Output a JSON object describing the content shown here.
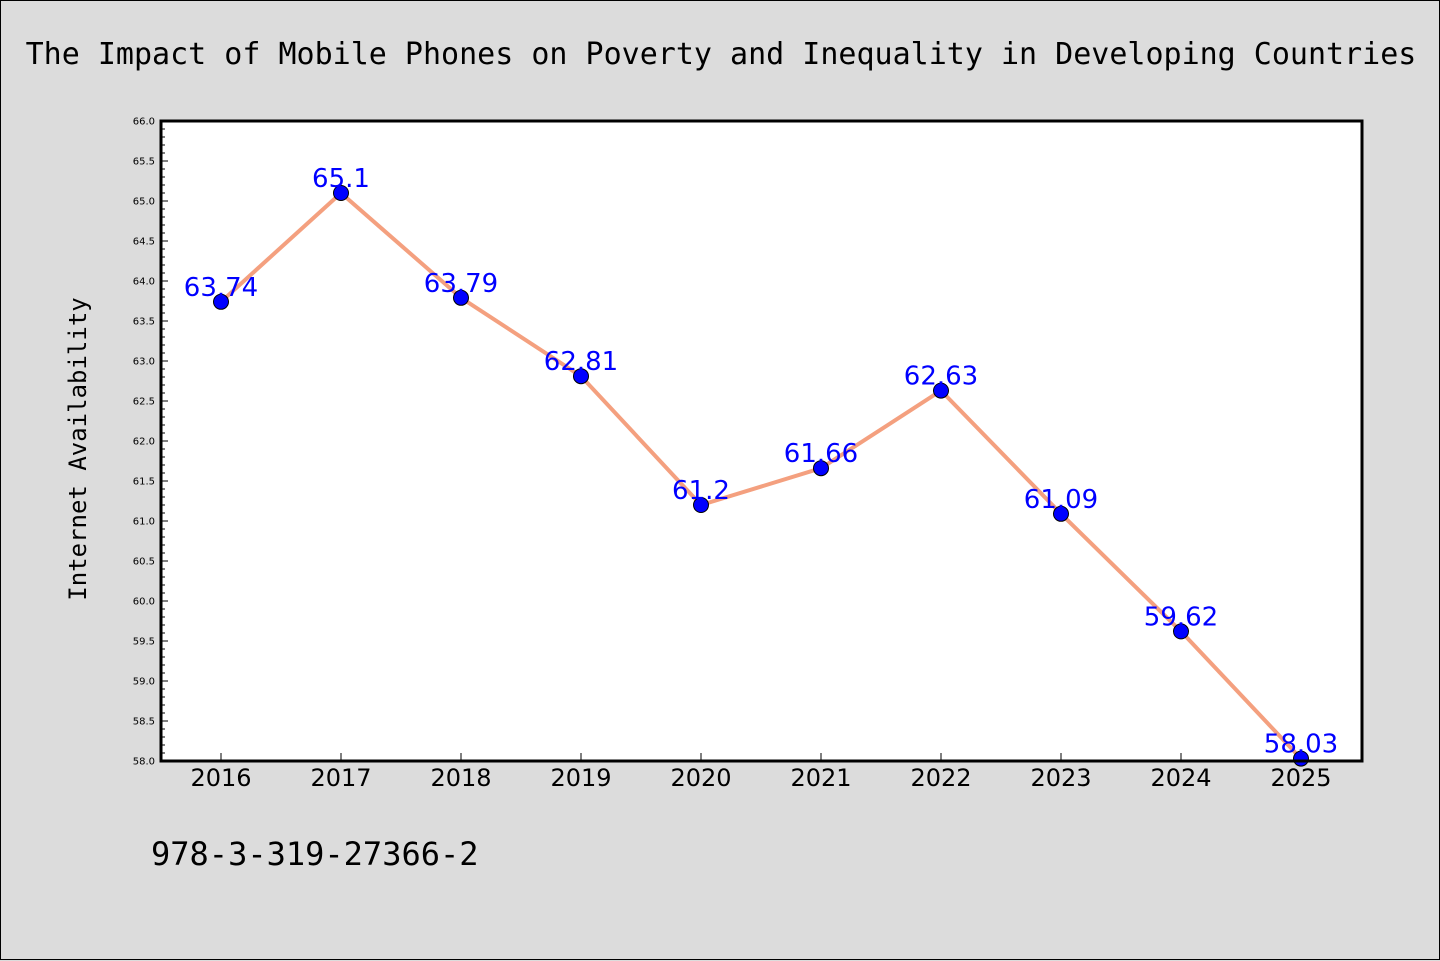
{
  "footer": {
    "isbn": "978-3-319-27366-2"
  },
  "colors": {
    "line": "#f4a07f",
    "marker": "#0000ff",
    "label": "#0000ff",
    "plot_bg": "#ffffff",
    "page_bg": "#dcdcdc"
  },
  "chart_data": {
    "type": "line",
    "title": "The Impact of Mobile Phones on Poverty and Inequality in Developing Countries",
    "xlabel": "",
    "ylabel": "Internet Availability",
    "x": [
      "2016",
      "2017",
      "2018",
      "2019",
      "2020",
      "2021",
      "2022",
      "2023",
      "2024",
      "2025"
    ],
    "values": [
      63.74,
      65.1,
      63.79,
      62.81,
      61.2,
      61.66,
      62.63,
      61.09,
      59.62,
      58.03
    ],
    "data_labels": [
      "63.74",
      "65.1",
      "63.79",
      "62.81",
      "61.2",
      "61.66",
      "62.63",
      "61.09",
      "59.62",
      "58.03"
    ],
    "ylim": [
      58.0,
      66.0
    ],
    "yticks": [
      "58.0",
      "58.5",
      "59.0",
      "59.5",
      "60.0",
      "60.5",
      "61.0",
      "61.5",
      "62.0",
      "62.5",
      "63.0",
      "63.5",
      "64.0",
      "64.5",
      "65.0",
      "65.5",
      "66.0"
    ],
    "grid": false,
    "legend": "none"
  }
}
